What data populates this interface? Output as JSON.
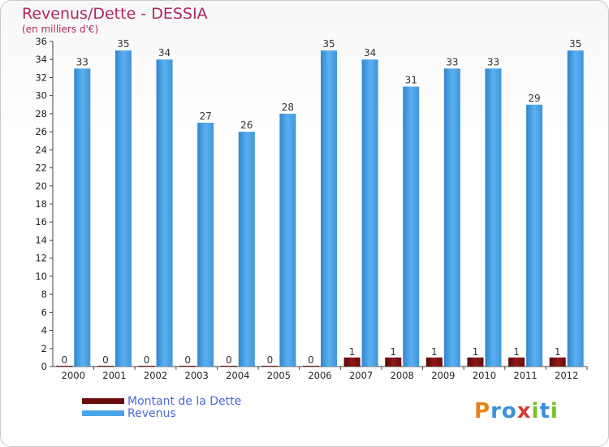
{
  "title": "Revenus/Dette - DESSIA",
  "subtitle": "(en milliers d'€)",
  "chart_data": {
    "type": "bar",
    "categories": [
      "2000",
      "2001",
      "2002",
      "2003",
      "2004",
      "2005",
      "2006",
      "2007",
      "2008",
      "2009",
      "2010",
      "2011",
      "2012"
    ],
    "series": [
      {
        "name": "Montant de la Dette",
        "color": "#7a1010",
        "values": [
          0,
          0,
          0,
          0,
          0,
          0,
          0,
          1,
          1,
          1,
          1,
          1,
          1
        ]
      },
      {
        "name": "Revenus",
        "color": "#4aa3e6",
        "values": [
          33,
          35,
          34,
          27,
          26,
          28,
          35,
          34,
          31,
          33,
          33,
          29,
          35
        ]
      }
    ],
    "ylim": [
      0,
      36
    ],
    "yticks": [
      0,
      2,
      4,
      6,
      8,
      10,
      12,
      14,
      16,
      18,
      20,
      22,
      24,
      26,
      28,
      30,
      32,
      34,
      36
    ],
    "grid": false,
    "legend_position": "bottom-left"
  },
  "logo": {
    "text": "Proxiti"
  }
}
